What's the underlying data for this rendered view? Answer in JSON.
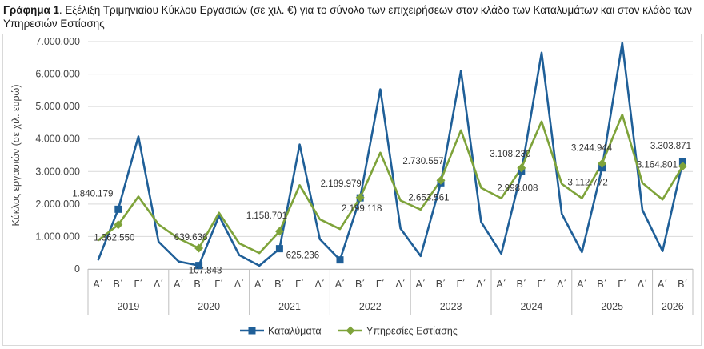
{
  "caption": {
    "bold": "Γράφημα 1",
    "text": ". Εξέλιξη Τριμηνιαίου Κύκλου Εργασιών (σε χιλ. €) για το σύνολο των επιχειρήσεων στον κλάδο των Καταλυμάτων και στον κλάδο των Υπηρεσιών Εστίασης"
  },
  "chart_data": {
    "type": "line",
    "ylabel": "Κύκλος εργασιών (σε χιλ. ευρώ)",
    "ylim": [
      0,
      7000000
    ],
    "yticks": [
      0,
      1000000,
      2000000,
      3000000,
      4000000,
      5000000,
      6000000,
      7000000
    ],
    "ytick_labels": [
      "0",
      "1.000.000",
      "2.000.000",
      "3.000.000",
      "4.000.000",
      "5.000.000",
      "6.000.000",
      "7.000.000"
    ],
    "grid": true,
    "legend_position": "bottom",
    "quarters": [
      "Α΄",
      "Β΄",
      "Γ΄",
      "Δ΄",
      "Α΄",
      "Β΄",
      "Γ΄",
      "Δ΄",
      "Α΄",
      "Β΄",
      "Γ΄",
      "Δ΄",
      "Α΄",
      "Β΄",
      "Γ΄",
      "Δ΄",
      "Α΄",
      "Β΄",
      "Γ΄",
      "Δ΄",
      "Α΄",
      "Β΄",
      "Γ΄",
      "Δ΄",
      "Α΄",
      "Β΄",
      "Γ΄",
      "Δ΄",
      "Α΄",
      "Β΄"
    ],
    "years": [
      {
        "label": "2019",
        "count": 4
      },
      {
        "label": "2020",
        "count": 4
      },
      {
        "label": "2021",
        "count": 4
      },
      {
        "label": "2022",
        "count": 4
      },
      {
        "label": "2023",
        "count": 4
      },
      {
        "label": "2024",
        "count": 4
      },
      {
        "label": "2025",
        "count": 4
      },
      {
        "label": "2026",
        "count": 2
      }
    ],
    "series": [
      {
        "name": "Καταλύματα",
        "color": "#1f5f98",
        "marker": "square",
        "values": [
          270000,
          1840179,
          4080000,
          840000,
          230000,
          107843,
          1640000,
          430000,
          100000,
          625236,
          3830000,
          920000,
          280000,
          2189979,
          5530000,
          1250000,
          400000,
          2653561,
          6100000,
          1450000,
          470000,
          2998008,
          6660000,
          1700000,
          520000,
          3112772,
          6960000,
          1820000,
          550000,
          3303871
        ],
        "marker_indices": [
          1,
          5,
          9,
          12,
          13,
          17,
          21,
          25,
          29
        ]
      },
      {
        "name": "Υπηρεσίες Εστίασης",
        "color": "#7ea33a",
        "marker": "diamond",
        "values": [
          880000,
          1362550,
          2230000,
          1370000,
          940000,
          639636,
          1730000,
          790000,
          490000,
          1158701,
          2580000,
          1530000,
          1230000,
          2199118,
          3580000,
          2110000,
          1830000,
          2730557,
          4270000,
          2500000,
          2180000,
          3108230,
          4540000,
          2620000,
          2180000,
          3244944,
          4750000,
          2650000,
          2140000,
          3164801
        ],
        "marker_indices": [
          1,
          5,
          9,
          13,
          17,
          21,
          25,
          29
        ]
      }
    ],
    "data_labels": [
      {
        "text": "1.840.179",
        "series": 0,
        "index": 1
      },
      {
        "text": "1.362.550",
        "series": 1,
        "index": 1
      },
      {
        "text": "639.636",
        "series": 1,
        "index": 5
      },
      {
        "text": "107.843",
        "series": 0,
        "index": 5
      },
      {
        "text": "1.158.701",
        "series": 1,
        "index": 9
      },
      {
        "text": "625.236",
        "series": 0,
        "index": 9
      },
      {
        "text": "2.189.979",
        "series": 0,
        "index": 13
      },
      {
        "text": "2.199.118",
        "series": 1,
        "index": 13
      },
      {
        "text": "2.730.557",
        "series": 1,
        "index": 17
      },
      {
        "text": "2.653.561",
        "series": 0,
        "index": 17
      },
      {
        "text": "3.108.230",
        "series": 1,
        "index": 21
      },
      {
        "text": "2.998.008",
        "series": 0,
        "index": 21
      },
      {
        "text": "3.244.944",
        "series": 1,
        "index": 25
      },
      {
        "text": "3.112.772",
        "series": 0,
        "index": 25
      },
      {
        "text": "3.303.871",
        "series": 0,
        "index": 29
      },
      {
        "text": "3.164.801",
        "series": 1,
        "index": 29
      }
    ]
  }
}
